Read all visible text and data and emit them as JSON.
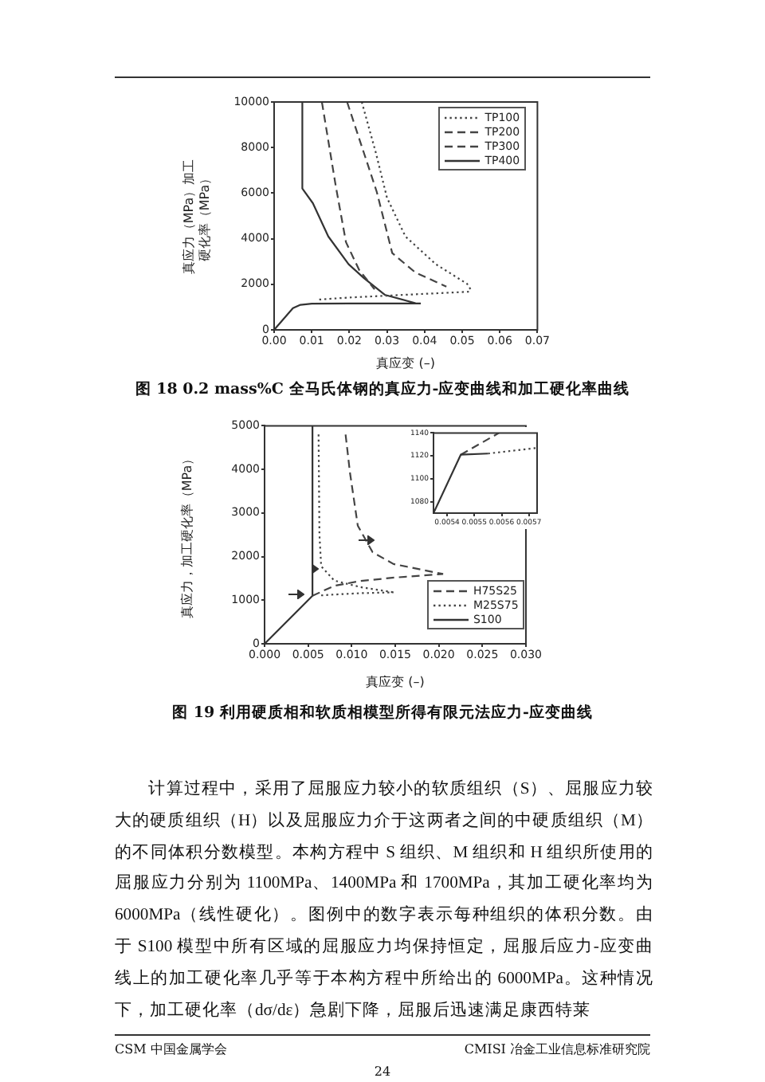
{
  "chart_data": [
    {
      "type": "line",
      "title": "图 18 0.2 mass%C 全马氏体钢的真应力-应变曲线和加工硬化率曲线",
      "xlabel": "真应变 (–)",
      "ylabel": "真应力（MPa）加工硬化率（MPa）",
      "xlim": [
        0,
        0.07
      ],
      "xticks": [
        {
          "value": 0,
          "label": "0.00"
        },
        0.01,
        0.02,
        0.03,
        0.04,
        0.05,
        0.06,
        0.07
      ],
      "ylim": [
        0,
        10000
      ],
      "yticks": [
        0,
        2000,
        4000,
        6000,
        8000,
        10000
      ],
      "legend": "top right",
      "series": [
        {
          "name": "TP100",
          "color": "#444444",
          "line_style": "dotted",
          "x": [
            0.012,
            0.02,
            0.03,
            0.04,
            0.0526,
            null,
            0.0233,
            0.027,
            0.03,
            0.0349,
            0.043,
            0.0513,
            0.0526
          ],
          "values": [
            1330,
            1420,
            1500,
            1580,
            1680,
            null,
            10000,
            7800,
            5800,
            4100,
            2880,
            2020,
            1680
          ]
        },
        {
          "name": "TP200",
          "color": "#444444",
          "line_style": "dashed",
          "x": [
            0.0194,
            0.0273,
            0.0314,
            0.0376,
            0.0458
          ],
          "values": [
            10000,
            6050,
            3370,
            2510,
            1900
          ]
        },
        {
          "name": "TP300",
          "color": "#444444",
          "line_style": "dashed",
          "x": [
            0.0127,
            0.0164,
            0.0191,
            0.0226,
            0.0267
          ],
          "values": [
            10000,
            6300,
            3850,
            2630,
            1780
          ]
        },
        {
          "name": "TP400",
          "color": "#333333",
          "line_style": "solid",
          "x": [
            0,
            0.005,
            0.007,
            0.01,
            0.02,
            0.039,
            null,
            0.0075,
            0.0075,
            0.0103,
            0.0144,
            0.0198,
            0.0239,
            0.0294,
            0.0376
          ],
          "values": [
            0,
            950,
            1100,
            1150,
            1160,
            1160,
            null,
            10000,
            6200,
            5560,
            4100,
            2880,
            2270,
            1540,
            1170
          ]
        }
      ]
    },
    {
      "type": "line",
      "title": "图 19 利用硬质相和软质相模型所得有限元法应力-应变曲线",
      "xlabel": "真应变 (–)",
      "ylabel": "真应力，加工硬化率（MPa）",
      "xlim": [
        0,
        0.03
      ],
      "xticks": [
        {
          "value": 0,
          "label": "0.000"
        },
        0.005,
        {
          "value": 0.01,
          "label": "0.010"
        },
        0.015,
        {
          "value": 0.02,
          "label": "0.020"
        },
        0.025,
        {
          "value": 0.03,
          "label": "0.030"
        }
      ],
      "ylim": [
        0,
        5000
      ],
      "yticks": [
        0,
        1000,
        2000,
        3000,
        4000,
        5000
      ],
      "legend": "bottom right",
      "series": [
        {
          "name": "H75S25",
          "color": "#444444",
          "line_style": "dashed",
          "x": [
            0.0055,
            0.008,
            0.011,
            0.015,
            0.0205,
            null,
            0.0093,
            0.0098,
            0.0107,
            0.0124,
            0.0148,
            0.0205
          ],
          "values": [
            1100,
            1330,
            1440,
            1520,
            1600,
            null,
            4800,
            3930,
            2710,
            2100,
            1830,
            1600
          ]
        },
        {
          "name": "M25S75",
          "color": "#444444",
          "line_style": "dotted",
          "x": [
            0.0065,
            0.008,
            0.011,
            0.0148,
            null,
            0.0062,
            0.0063,
            0.0065,
            0.008,
            0.011,
            0.0148
          ],
          "values": [
            1110,
            1130,
            1160,
            1180,
            null,
            4800,
            2500,
            1780,
            1450,
            1300,
            1180
          ]
        },
        {
          "name": "S100",
          "color": "#333333",
          "line_style": "solid",
          "x": [
            0,
            0.0055,
            0.0055
          ],
          "values": [
            0,
            1100,
            5000
          ]
        }
      ]
    },
    {
      "type": "line",
      "xlim": [
        0.00535,
        0.00573
      ],
      "xticks": [
        0.0054,
        0.0055,
        0.0056,
        0.0057
      ],
      "ylim": [
        1070,
        1140
      ],
      "yticks": [
        1080,
        1100,
        1120,
        1140
      ],
      "series": [
        {
          "color": "#333333",
          "line_style": "solid",
          "x": [
            0.00535,
            0.00545,
            0.00555
          ],
          "values": [
            1070,
            1121,
            1122
          ]
        },
        {
          "color": "#444444",
          "line_style": "dashed",
          "x": [
            0.00545,
            0.00559
          ],
          "values": [
            1121,
            1140
          ]
        },
        {
          "color": "#444444",
          "line_style": "dotted",
          "x": [
            0.00555,
            0.00573
          ],
          "values": [
            1122,
            1127
          ]
        }
      ]
    },
    {
      "type": "other",
      "annotations": [
        "计算过程中，采用了屈服应力较小的软质组织（S）、屈服应力较大的硬质组织（H）以及屈服应力介于这两者之间的中硬质组织（M）的不同体积分数模型。本构方程中 S 组织、M 组织和 H 组织所使用的屈服应力分别为 1100MPa、1400MPa 和 1700MPa，其加工硬化率均为 6000MPa（线性硬化）。图例中的数字表示每种组织的体积分数。由于 S100 模型中所有区域的屈服应力均保持恒定，屈服后应力-应变曲线上的加工硬化率几乎等于本构方程中所给出的 6000MPa。这种情况下，加工硬化率（dσ/dε）急剧下降，屈服后迅速满足康西特莱",
        "CSM 中国金属学会",
        "CMISI 冶金工业信息标准研究院",
        "24"
      ]
    }
  ]
}
